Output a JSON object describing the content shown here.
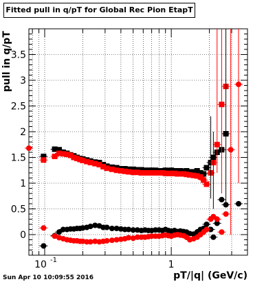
{
  "chart_data": {
    "type": "scatter",
    "title": "Fitted pull in q/pT for Global Rec Pion EtapT",
    "xlabel": "pT/|q| (GeV/c)",
    "ylabel": "pull in q/pT",
    "x_scale": "log",
    "xlim": [
      0.075,
      4.0
    ],
    "ylim": [
      -0.4,
      4.0
    ],
    "grid": true,
    "x_ticks": [
      {
        "value": 0.1,
        "label": "10",
        "exponent": "-1"
      },
      {
        "value": 1,
        "label": "1",
        "exponent": ""
      }
    ],
    "y_ticks": [
      {
        "value": 0,
        "label": "0"
      },
      {
        "value": 0.5,
        "label": "0.5"
      },
      {
        "value": 1,
        "label": "1"
      },
      {
        "value": 1.5,
        "label": "1.5"
      },
      {
        "value": 2,
        "label": "2"
      },
      {
        "value": 2.5,
        "label": "2.5"
      },
      {
        "value": 3,
        "label": "3"
      },
      {
        "value": 3.5,
        "label": "3.5"
      }
    ],
    "series": [
      {
        "color": "#000000",
        "marker": "square",
        "points": [
          [
            0.098,
            1.52
          ],
          [
            0.12,
            1.66
          ],
          [
            0.13,
            1.65
          ],
          [
            0.14,
            1.6
          ],
          [
            0.15,
            1.58
          ],
          [
            0.16,
            1.55
          ],
          [
            0.17,
            1.53
          ],
          [
            0.18,
            1.5
          ],
          [
            0.19,
            1.48
          ],
          [
            0.2,
            1.47
          ],
          [
            0.215,
            1.45
          ],
          [
            0.23,
            1.43
          ],
          [
            0.25,
            1.41
          ],
          [
            0.27,
            1.4
          ],
          [
            0.29,
            1.36
          ],
          [
            0.31,
            1.33
          ],
          [
            0.34,
            1.31
          ],
          [
            0.37,
            1.3
          ],
          [
            0.4,
            1.28
          ],
          [
            0.43,
            1.28
          ],
          [
            0.46,
            1.27
          ],
          [
            0.5,
            1.27
          ],
          [
            0.54,
            1.26
          ],
          [
            0.58,
            1.26
          ],
          [
            0.62,
            1.25
          ],
          [
            0.66,
            1.25
          ],
          [
            0.7,
            1.25
          ],
          [
            0.75,
            1.25
          ],
          [
            0.8,
            1.24
          ],
          [
            0.85,
            1.24
          ],
          [
            0.9,
            1.25
          ],
          [
            0.95,
            1.24
          ],
          [
            1.0,
            1.25
          ],
          [
            1.06,
            1.24
          ],
          [
            1.12,
            1.24
          ],
          [
            1.18,
            1.24
          ],
          [
            1.25,
            1.23
          ],
          [
            1.32,
            1.24
          ],
          [
            1.4,
            1.22
          ],
          [
            1.5,
            1.22
          ],
          [
            1.6,
            1.24
          ],
          [
            1.7,
            1.2
          ],
          [
            1.8,
            1.18
          ],
          [
            1.9,
            1.3
          ],
          [
            2.05,
            1.4
          ],
          [
            2.15,
            1.5
          ],
          [
            2.3,
            1.6
          ],
          [
            2.5,
            1.65
          ],
          [
            2.7,
            1.96
          ]
        ]
      },
      {
        "color": "#ff0000",
        "marker": "square",
        "points": [
          [
            0.098,
            1.45
          ],
          [
            0.12,
            1.52
          ],
          [
            0.13,
            1.58
          ],
          [
            0.14,
            1.57
          ],
          [
            0.15,
            1.56
          ],
          [
            0.16,
            1.54
          ],
          [
            0.17,
            1.5
          ],
          [
            0.18,
            1.48
          ],
          [
            0.19,
            1.46
          ],
          [
            0.2,
            1.44
          ],
          [
            0.215,
            1.42
          ],
          [
            0.23,
            1.4
          ],
          [
            0.25,
            1.38
          ],
          [
            0.27,
            1.36
          ],
          [
            0.29,
            1.32
          ],
          [
            0.31,
            1.29
          ],
          [
            0.34,
            1.27
          ],
          [
            0.37,
            1.25
          ],
          [
            0.4,
            1.24
          ],
          [
            0.43,
            1.23
          ],
          [
            0.46,
            1.22
          ],
          [
            0.5,
            1.21
          ],
          [
            0.54,
            1.21
          ],
          [
            0.58,
            1.2
          ],
          [
            0.62,
            1.2
          ],
          [
            0.66,
            1.2
          ],
          [
            0.7,
            1.2
          ],
          [
            0.75,
            1.2
          ],
          [
            0.8,
            1.2
          ],
          [
            0.85,
            1.2
          ],
          [
            0.9,
            1.19
          ],
          [
            0.95,
            1.19
          ],
          [
            1.0,
            1.19
          ],
          [
            1.06,
            1.19
          ],
          [
            1.12,
            1.18
          ],
          [
            1.18,
            1.18
          ],
          [
            1.25,
            1.18
          ],
          [
            1.32,
            1.17
          ],
          [
            1.4,
            1.16
          ],
          [
            1.5,
            1.15
          ],
          [
            1.6,
            1.14
          ],
          [
            1.7,
            1.12
          ],
          [
            1.8,
            1.06
          ],
          [
            1.9,
            0.98
          ],
          [
            2.05,
            1.2
          ],
          [
            2.15,
            1.4
          ],
          [
            2.3,
            1.75
          ],
          [
            2.5,
            2.53
          ],
          [
            2.7,
            2.88
          ]
        ]
      },
      {
        "color": "#000000",
        "marker": "circle",
        "points": [
          [
            0.098,
            -0.22
          ],
          [
            0.12,
            -0.02
          ],
          [
            0.13,
            0.05
          ],
          [
            0.14,
            0.1
          ],
          [
            0.15,
            0.1
          ],
          [
            0.16,
            0.11
          ],
          [
            0.17,
            0.11
          ],
          [
            0.18,
            0.12
          ],
          [
            0.19,
            0.12
          ],
          [
            0.2,
            0.13
          ],
          [
            0.215,
            0.14
          ],
          [
            0.23,
            0.16
          ],
          [
            0.25,
            0.18
          ],
          [
            0.27,
            0.17
          ],
          [
            0.29,
            0.14
          ],
          [
            0.31,
            0.14
          ],
          [
            0.34,
            0.12
          ],
          [
            0.37,
            0.12
          ],
          [
            0.4,
            0.11
          ],
          [
            0.43,
            0.1
          ],
          [
            0.46,
            0.1
          ],
          [
            0.5,
            0.09
          ],
          [
            0.54,
            0.09
          ],
          [
            0.58,
            0.08
          ],
          [
            0.62,
            0.09
          ],
          [
            0.66,
            0.08
          ],
          [
            0.7,
            0.08
          ],
          [
            0.75,
            0.09
          ],
          [
            0.8,
            0.09
          ],
          [
            0.85,
            0.08
          ],
          [
            0.9,
            0.1
          ],
          [
            0.95,
            0.08
          ],
          [
            1.0,
            0.07
          ],
          [
            1.06,
            0.08
          ],
          [
            1.12,
            0.06
          ],
          [
            1.18,
            0.07
          ],
          [
            1.25,
            0.06
          ],
          [
            1.32,
            0.05
          ],
          [
            1.4,
            0.02
          ],
          [
            1.5,
            0.01
          ],
          [
            1.6,
            0.05
          ],
          [
            1.7,
            0.1
          ],
          [
            1.8,
            0.12
          ],
          [
            1.9,
            0.2
          ],
          [
            2.05,
            0.1
          ],
          [
            2.15,
            -0.05
          ],
          [
            2.3,
            0.22
          ],
          [
            2.5,
            0.68
          ],
          [
            2.7,
            0.58
          ],
          [
            3.4,
            0.6
          ]
        ]
      },
      {
        "color": "#ff0000",
        "marker": "circle",
        "points": [
          [
            0.075,
            1.68
          ],
          [
            0.098,
            0.13
          ],
          [
            0.12,
            -0.03
          ],
          [
            0.13,
            -0.06
          ],
          [
            0.14,
            -0.08
          ],
          [
            0.15,
            -0.1
          ],
          [
            0.16,
            -0.11
          ],
          [
            0.17,
            -0.12
          ],
          [
            0.18,
            -0.12
          ],
          [
            0.19,
            -0.13
          ],
          [
            0.2,
            -0.13
          ],
          [
            0.215,
            -0.14
          ],
          [
            0.23,
            -0.14
          ],
          [
            0.25,
            -0.13
          ],
          [
            0.27,
            -0.14
          ],
          [
            0.29,
            -0.13
          ],
          [
            0.31,
            -0.12
          ],
          [
            0.34,
            -0.11
          ],
          [
            0.37,
            -0.1
          ],
          [
            0.4,
            -0.09
          ],
          [
            0.43,
            -0.08
          ],
          [
            0.46,
            -0.06
          ],
          [
            0.5,
            -0.07
          ],
          [
            0.54,
            -0.05
          ],
          [
            0.58,
            -0.05
          ],
          [
            0.62,
            -0.05
          ],
          [
            0.66,
            -0.04
          ],
          [
            0.7,
            -0.03
          ],
          [
            0.75,
            -0.03
          ],
          [
            0.8,
            -0.03
          ],
          [
            0.85,
            -0.02
          ],
          [
            0.9,
            -0.01
          ],
          [
            0.95,
            -0.02
          ],
          [
            1.0,
            -0.03
          ],
          [
            1.06,
            -0.01
          ],
          [
            1.12,
            0.0
          ],
          [
            1.18,
            -0.01
          ],
          [
            1.25,
            -0.02
          ],
          [
            1.32,
            -0.05
          ],
          [
            1.4,
            -0.1
          ],
          [
            1.5,
            -0.08
          ],
          [
            1.6,
            -0.05
          ],
          [
            1.7,
            0.0
          ],
          [
            1.8,
            0.05
          ],
          [
            1.9,
            0.1
          ],
          [
            2.05,
            0.3
          ],
          [
            2.15,
            0.35
          ],
          [
            2.3,
            0.3
          ],
          [
            2.5,
            0.05
          ],
          [
            2.7,
            0.4
          ],
          [
            2.95,
            1.65
          ],
          [
            3.4,
            2.92
          ]
        ]
      }
    ],
    "footer": "Sun Apr 10 10:09:55 2016"
  }
}
